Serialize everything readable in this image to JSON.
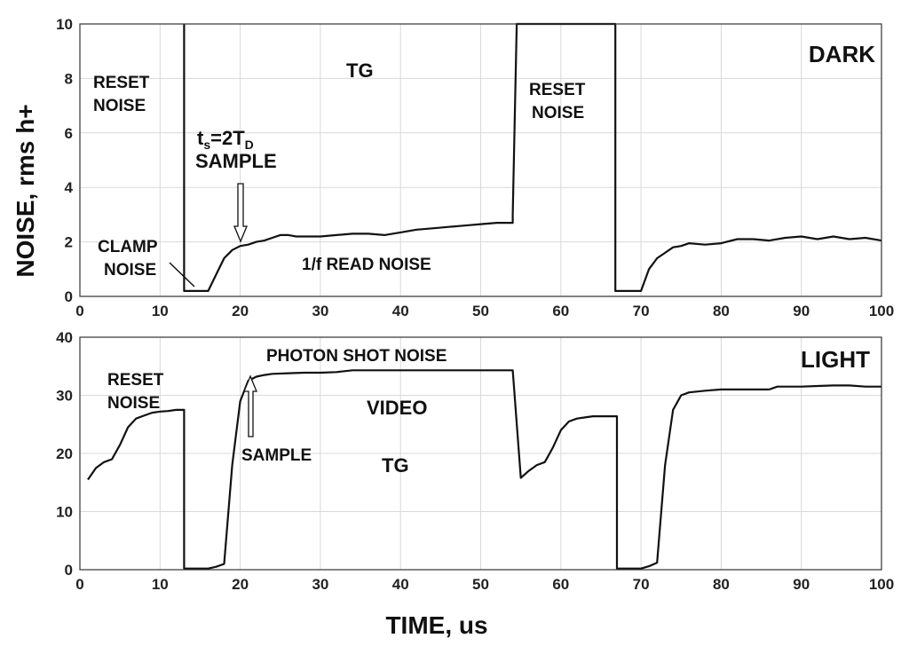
{
  "figure": {
    "ylabel": "NOISE, rms h+",
    "xlabel": "TIME, us"
  },
  "chart_data": [
    {
      "type": "line",
      "title": "DARK",
      "xlim": [
        0,
        100
      ],
      "ylim": [
        0,
        10
      ],
      "x_ticks": [
        0,
        10,
        20,
        30,
        40,
        50,
        60,
        70,
        80,
        90,
        100
      ],
      "y_ticks": [
        0,
        2,
        4,
        6,
        8,
        10
      ],
      "grid": true,
      "series": [
        {
          "x": [
            13,
            13,
            15,
            16,
            17,
            18,
            19,
            20,
            21,
            22,
            23,
            24,
            25,
            26,
            27,
            28,
            30,
            32,
            34,
            36,
            38,
            40,
            42,
            44,
            46,
            48,
            50,
            52,
            54,
            54,
            54.5,
            66.8,
            66.8,
            67,
            70,
            71,
            72,
            73,
            74,
            75,
            76,
            78,
            80,
            82,
            84,
            86,
            88,
            90,
            92,
            94,
            96,
            98,
            100
          ],
          "y": [
            10.5,
            0.2,
            0.2,
            0.2,
            0.8,
            1.4,
            1.7,
            1.85,
            1.9,
            2.0,
            2.05,
            2.15,
            2.25,
            2.25,
            2.2,
            2.2,
            2.2,
            2.25,
            2.3,
            2.3,
            2.25,
            2.35,
            2.45,
            2.5,
            2.55,
            2.6,
            2.65,
            2.7,
            2.7,
            3.0,
            10.5,
            10.5,
            0.2,
            0.2,
            0.2,
            1.0,
            1.4,
            1.6,
            1.8,
            1.85,
            1.95,
            1.9,
            1.95,
            2.1,
            2.1,
            2.05,
            2.15,
            2.2,
            2.1,
            2.2,
            2.1,
            2.15,
            2.05
          ]
        }
      ],
      "annotations": {
        "reset_noise_left": [
          "RESET",
          "NOISE"
        ],
        "tg": "TG",
        "ts_main": "t",
        "ts_sub_s": "s",
        "ts_eq": "=2T",
        "ts_sub_d": "D",
        "sample": "SAMPLE",
        "clamp_noise": [
          "CLAMP",
          "NOISE"
        ],
        "read_noise": "1/f READ NOISE",
        "reset_noise_right": [
          "RESET",
          "NOISE"
        ]
      }
    },
    {
      "type": "line",
      "title": "LIGHT",
      "xlim": [
        0,
        100
      ],
      "ylim": [
        0,
        40
      ],
      "x_ticks": [
        0,
        10,
        20,
        30,
        40,
        50,
        60,
        70,
        80,
        90,
        100
      ],
      "y_ticks": [
        0,
        10,
        20,
        30,
        40
      ],
      "grid": true,
      "series": [
        {
          "x": [
            1,
            2,
            3,
            4,
            5,
            6,
            7,
            8,
            9,
            10,
            11,
            12,
            13,
            13,
            14,
            15,
            16,
            17,
            18,
            19,
            20,
            21,
            22,
            23,
            24,
            26,
            28,
            30,
            32,
            34,
            36,
            38,
            40,
            42,
            44,
            46,
            48,
            50,
            52,
            54,
            55,
            56,
            57,
            58,
            59,
            60,
            61,
            62,
            63,
            64,
            65,
            66,
            67,
            67,
            68,
            69,
            70,
            71,
            72,
            73,
            74,
            75,
            76,
            78,
            80,
            82,
            84,
            86,
            87,
            88,
            90,
            92,
            94,
            96,
            98,
            100
          ],
          "y": [
            15.5,
            17.5,
            18.5,
            19.0,
            21.5,
            24.5,
            26.0,
            26.5,
            27.0,
            27.2,
            27.3,
            27.5,
            27.5,
            0.2,
            0.2,
            0.2,
            0.2,
            0.5,
            1.0,
            18.0,
            29.0,
            32.5,
            33.2,
            33.5,
            33.7,
            33.8,
            33.9,
            33.9,
            34.0,
            34.3,
            34.3,
            34.3,
            34.3,
            34.3,
            34.3,
            34.3,
            34.3,
            34.3,
            34.3,
            34.3,
            15.8,
            17.0,
            18.0,
            18.5,
            21.0,
            24.0,
            25.5,
            26.0,
            26.2,
            26.4,
            26.4,
            26.4,
            26.4,
            0.2,
            0.2,
            0.2,
            0.2,
            0.6,
            1.2,
            18.0,
            27.5,
            30.0,
            30.5,
            30.8,
            31.0,
            31.0,
            31.0,
            31.0,
            31.5,
            31.5,
            31.5,
            31.6,
            31.7,
            31.7,
            31.5,
            31.5
          ]
        }
      ],
      "annotations": {
        "reset_noise": [
          "RESET",
          "NOISE"
        ],
        "photon_shot_noise": "PHOTON SHOT NOISE",
        "video": "VIDEO",
        "sample": "SAMPLE",
        "tg": "TG"
      }
    }
  ]
}
